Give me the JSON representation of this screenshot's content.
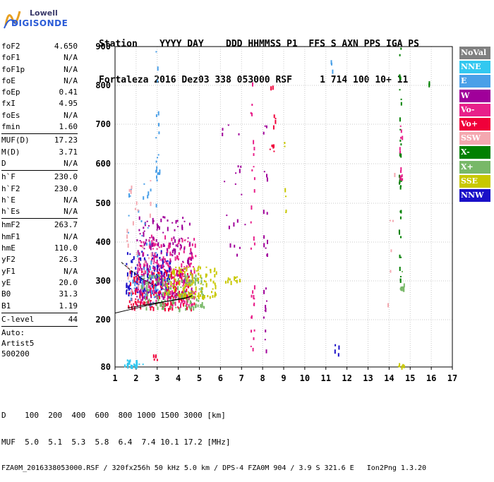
{
  "logo": {
    "line1": "Lowell",
    "line2": "DIGISONDE"
  },
  "header": {
    "line1": "Station    YYYY DAY    DDD HHMMSS P1  FFS S AXN PPS IGA PS",
    "line2": "Fortaleza 2016 Dez03 338 053000 RSF     1 714 100 10+ 11"
  },
  "params": [
    {
      "k": "foF2",
      "v": "4.650"
    },
    {
      "k": "foF1",
      "v": "N/A"
    },
    {
      "k": "foF1p",
      "v": "N/A"
    },
    {
      "k": "foE",
      "v": "N/A"
    },
    {
      "k": "foEp",
      "v": "0.41"
    },
    {
      "k": "fxI",
      "v": "4.95"
    },
    {
      "k": "foEs",
      "v": "N/A"
    },
    {
      "k": "fmin",
      "v": "1.60"
    },
    {
      "sep": true
    },
    {
      "k": "MUF(D)",
      "v": "17.23"
    },
    {
      "k": "M(D)",
      "v": "3.71"
    },
    {
      "k": "D",
      "v": "N/A"
    },
    {
      "sep": true
    },
    {
      "k": "h`F",
      "v": "230.0"
    },
    {
      "k": "h`F2",
      "v": "230.0"
    },
    {
      "k": "h`E",
      "v": "N/A"
    },
    {
      "k": "h`Es",
      "v": "N/A"
    },
    {
      "sep": true
    },
    {
      "k": "hmF2",
      "v": "263.7"
    },
    {
      "k": "hmF1",
      "v": "N/A"
    },
    {
      "k": "hmE",
      "v": "110.0"
    },
    {
      "k": "yF2",
      "v": "26.3"
    },
    {
      "k": "yF1",
      "v": "N/A"
    },
    {
      "k": "yE",
      "v": "20.0"
    },
    {
      "k": "B0",
      "v": "31.3"
    },
    {
      "k": "B1",
      "v": "1.19"
    },
    {
      "sep": true
    },
    {
      "k": "C-level",
      "v": "44"
    },
    {
      "sep": true
    }
  ],
  "extra": [
    "Auto:",
    "Artist5",
    "500200"
  ],
  "legend": [
    {
      "label": "NoVal",
      "color": "#808080"
    },
    {
      "label": "NNE",
      "color": "#33c8f0"
    },
    {
      "label": "E",
      "color": "#4aa0e8"
    },
    {
      "label": "W",
      "color": "#a0009a"
    },
    {
      "label": "Vo-",
      "color": "#e8208a"
    },
    {
      "label": "Vo+",
      "color": "#f0003a"
    },
    {
      "label": "SSW",
      "color": "#f4a8b0"
    },
    {
      "label": "X-",
      "color": "#008000"
    },
    {
      "label": "X+",
      "color": "#78b868"
    },
    {
      "label": "SSE",
      "color": "#c8c800"
    },
    {
      "label": "NNW",
      "color": "#1a10c8"
    }
  ],
  "footer": {
    "line1": "D    100  200  400  600  800 1000 1500 3000 [km]",
    "line2": "MUF  5.0  5.1  5.3  5.8  6.4  7.4 10.1 17.2 [MHz]",
    "line3": "FZA0M_2016338053000.RSF / 320fx256h 50 kHz 5.0 km / DPS-4 FZA0M 904 / 3.9 S 321.6 E   Ion2Png 1.3.20"
  },
  "chart_data": {
    "type": "scatter",
    "xlim": [
      1,
      17
    ],
    "ylim": [
      80,
      900
    ],
    "x_ticks": [
      1,
      2,
      3,
      4,
      5,
      6,
      7,
      8,
      9,
      10,
      11,
      12,
      13,
      14,
      15,
      16,
      17
    ],
    "y_ticks": [
      80,
      200,
      300,
      400,
      500,
      600,
      700,
      800,
      900
    ],
    "grid": true,
    "trace_lines": [
      {
        "name": "",
        "points": [
          [
            1.6,
            230
          ],
          [
            2.0,
            234
          ],
          [
            2.6,
            240
          ],
          [
            3.2,
            245
          ],
          [
            3.8,
            250
          ],
          [
            4.3,
            255
          ],
          [
            4.65,
            262
          ]
        ]
      },
      {
        "name": "",
        "points": [
          [
            1.3,
            348
          ],
          [
            1.8,
            325
          ],
          [
            2.3,
            305
          ],
          [
            2.8,
            290
          ]
        ]
      },
      {
        "name": "",
        "points": [
          [
            1.0,
            217
          ],
          [
            1.7,
            226
          ],
          [
            2.5,
            236
          ],
          [
            3.5,
            248
          ],
          [
            4.5,
            258
          ],
          [
            4.65,
            262
          ]
        ]
      }
    ],
    "clusters": [
      {
        "color": "#1a10c8",
        "x": [
          1.5,
          3.6
        ],
        "y": [
          270,
          380
        ],
        "n": 160
      },
      {
        "color": "#e8208a",
        "x": [
          2.0,
          4.8
        ],
        "y": [
          240,
          420
        ],
        "n": 260
      },
      {
        "color": "#a0009a",
        "x": [
          2.0,
          4.6
        ],
        "y": [
          260,
          470
        ],
        "n": 170
      },
      {
        "color": "#f0003a",
        "x": [
          1.6,
          4.8
        ],
        "y": [
          230,
          330
        ],
        "n": 150
      },
      {
        "color": "#78b868",
        "x": [
          2.2,
          5.2
        ],
        "y": [
          230,
          320
        ],
        "n": 140
      },
      {
        "color": "#c8c800",
        "x": [
          3.4,
          5.8
        ],
        "y": [
          260,
          340
        ],
        "n": 110
      },
      {
        "color": "#4aa0e8",
        "x": [
          1.6,
          3.0
        ],
        "y": [
          240,
          560
        ],
        "n": 50
      },
      {
        "color": "#33c8f0",
        "x": [
          1.4,
          2.4
        ],
        "y": [
          85,
          100
        ],
        "n": 25
      },
      {
        "color": "#f4a8b0",
        "x": [
          1.5,
          2.8
        ],
        "y": [
          230,
          560
        ],
        "n": 35
      },
      {
        "color": "#f0003a",
        "x": [
          2.8,
          3.0
        ],
        "y": [
          100,
          120
        ],
        "n": 5
      },
      {
        "color": "#e8208a",
        "x": [
          7.4,
          7.6
        ],
        "y": [
          120,
          900
        ],
        "n": 30
      },
      {
        "color": "#a0009a",
        "x": [
          8.0,
          8.2
        ],
        "y": [
          120,
          700
        ],
        "n": 25
      },
      {
        "color": "#f0003a",
        "x": [
          8.3,
          8.6
        ],
        "y": [
          620,
          800
        ],
        "n": 12
      },
      {
        "color": "#c8c800",
        "x": [
          9.0,
          9.1
        ],
        "y": [
          420,
          680
        ],
        "n": 6
      },
      {
        "color": "#4aa0e8",
        "x": [
          11.2,
          11.3
        ],
        "y": [
          840,
          870
        ],
        "n": 3
      },
      {
        "color": "#008000",
        "x": [
          14.45,
          14.55
        ],
        "y": [
          300,
          900
        ],
        "n": 35
      },
      {
        "color": "#e8208a",
        "x": [
          14.45,
          14.6
        ],
        "y": [
          560,
          700
        ],
        "n": 12
      },
      {
        "color": "#78b868",
        "x": [
          14.5,
          14.7
        ],
        "y": [
          280,
          330
        ],
        "n": 10
      },
      {
        "color": "#f4a8b0",
        "x": [
          13.9,
          14.3
        ],
        "y": [
          230,
          600
        ],
        "n": 6
      },
      {
        "color": "#c8c800",
        "x": [
          14.4,
          14.7
        ],
        "y": [
          82,
          100
        ],
        "n": 6
      },
      {
        "color": "#008000",
        "x": [
          15.8,
          16.0
        ],
        "y": [
          800,
          820
        ],
        "n": 3
      },
      {
        "color": "#a0009a",
        "x": [
          6.0,
          7.2
        ],
        "y": [
          330,
          760
        ],
        "n": 20
      },
      {
        "color": "#4aa0e8",
        "x": [
          2.9,
          3.1
        ],
        "y": [
          560,
          900
        ],
        "n": 20
      },
      {
        "color": "#c8c800",
        "x": [
          6.2,
          6.9
        ],
        "y": [
          300,
          312
        ],
        "n": 12
      },
      {
        "color": "#1a10c8",
        "x": [
          11.4,
          11.6
        ],
        "y": [
          115,
          140
        ],
        "n": 4
      }
    ]
  }
}
